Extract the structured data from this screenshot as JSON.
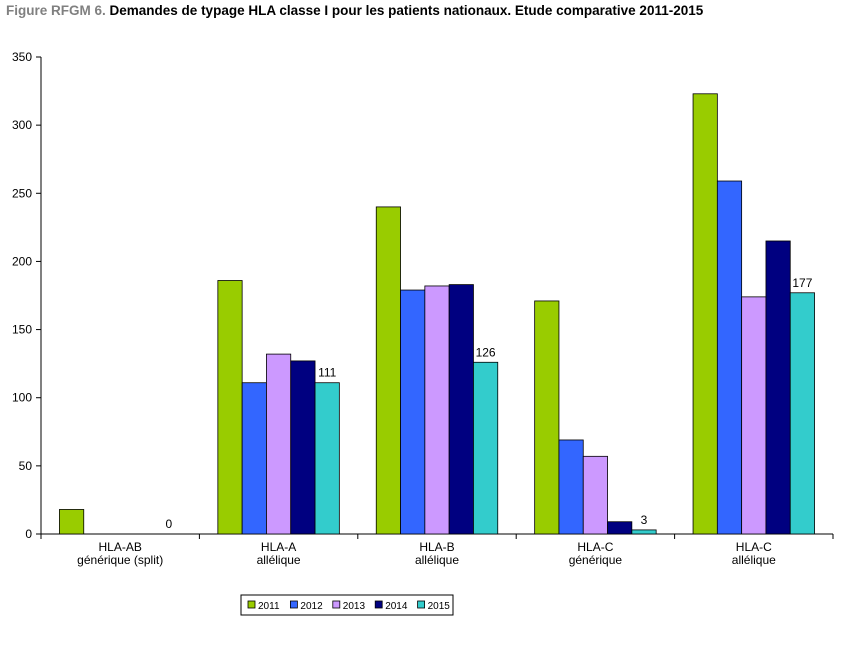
{
  "title": {
    "prefix": "Figure RFGM 6.",
    "main": "Demandes de typage HLA classe I pour les patients nationaux. Etude comparative 2011-2015"
  },
  "chart_data": {
    "type": "bar",
    "categories": [
      [
        "HLA-AB",
        "générique (split)"
      ],
      [
        "HLA-A",
        "allélique"
      ],
      [
        "HLA-B",
        "allélique"
      ],
      [
        "HLA-C",
        "générique"
      ],
      [
        "HLA-C",
        "allélique"
      ]
    ],
    "series": [
      {
        "name": "2011",
        "color": "#99CC00",
        "values": [
          18,
          186,
          240,
          171,
          323
        ]
      },
      {
        "name": "2012",
        "color": "#3366FF",
        "values": [
          0,
          111,
          179,
          69,
          259
        ]
      },
      {
        "name": "2013",
        "color": "#CC99FF",
        "values": [
          0,
          132,
          182,
          57,
          174
        ]
      },
      {
        "name": "2014",
        "color": "#000080",
        "values": [
          0,
          127,
          183,
          9,
          215
        ]
      },
      {
        "name": "2015",
        "color": "#33CCCC",
        "values": [
          0,
          111,
          126,
          3,
          177
        ]
      }
    ],
    "data_labels": [
      {
        "series": "2015",
        "category_index": 0,
        "text": "0"
      },
      {
        "series": "2015",
        "category_index": 1,
        "text": "111"
      },
      {
        "series": "2015",
        "category_index": 2,
        "text": "126"
      },
      {
        "series": "2015",
        "category_index": 3,
        "text": "3"
      },
      {
        "series": "2015",
        "category_index": 4,
        "text": "177"
      }
    ],
    "ylim": [
      0,
      350
    ],
    "yticks": [
      0,
      50,
      100,
      150,
      200,
      250,
      300,
      350
    ],
    "grid": false,
    "legend_position": "bottom"
  }
}
